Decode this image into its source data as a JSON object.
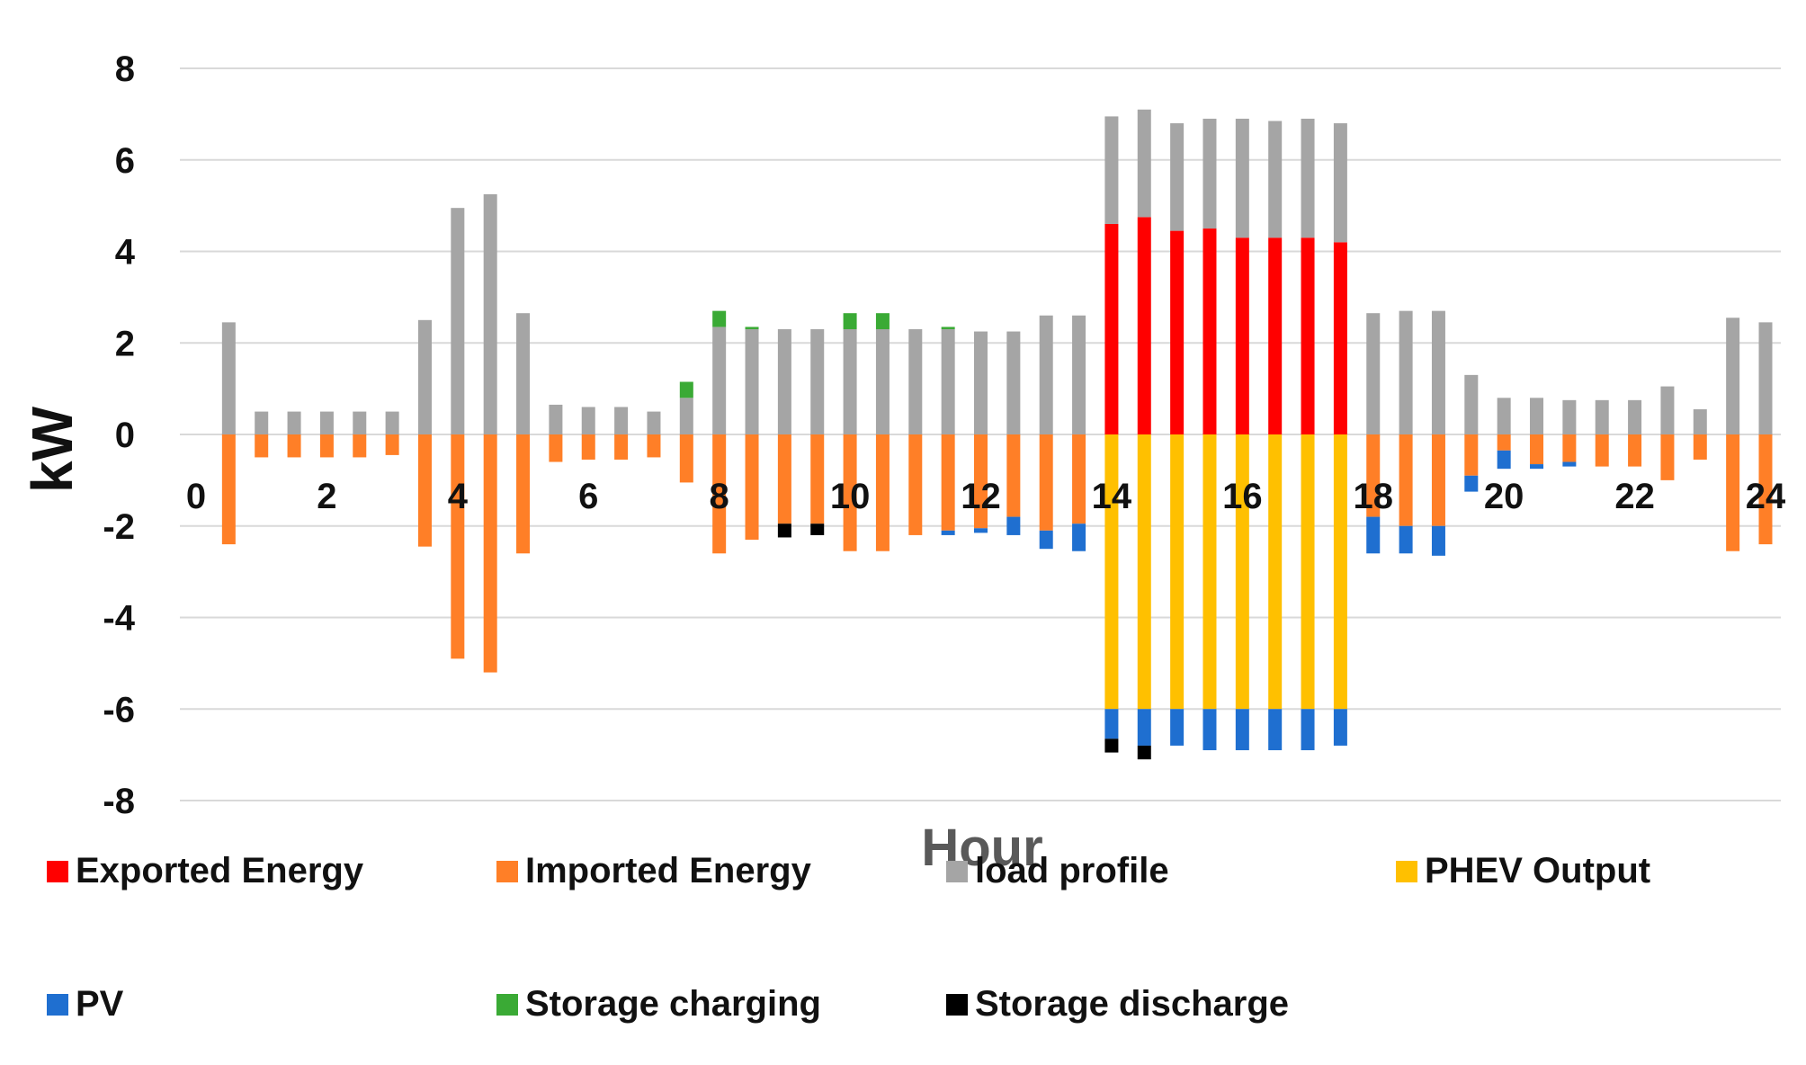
{
  "chart_data": {
    "type": "bar",
    "stacked": true,
    "title": "",
    "xlabel": "Hour",
    "ylabel": "kW",
    "ylim": [
      -8,
      8
    ],
    "xlim": [
      0,
      24
    ],
    "y_ticks": [
      "8",
      "6",
      "4",
      "2",
      "0",
      "-2",
      "-4",
      "-6",
      "-8"
    ],
    "x_ticks": [
      "0",
      "2",
      "4",
      "6",
      "8",
      "10",
      "12",
      "14",
      "16",
      "18",
      "20",
      "22",
      "24"
    ],
    "x": [
      0.5,
      1,
      1.5,
      2,
      2.5,
      3,
      3.5,
      4,
      4.5,
      5,
      5.5,
      6,
      6.5,
      7,
      7.5,
      8,
      8.5,
      9,
      9.5,
      10,
      10.5,
      11,
      11.5,
      12,
      12.5,
      13,
      13.5,
      14,
      14.5,
      15,
      15.5,
      16,
      16.5,
      17,
      17.5,
      18,
      18.5,
      19,
      19.5,
      20,
      20.5,
      21,
      21.5,
      22,
      22.5,
      23,
      23.5,
      24
    ],
    "series": [
      {
        "name": "Exported Energy",
        "color": "#ff0000",
        "values": [
          0,
          0,
          0,
          0,
          0,
          0,
          0,
          0,
          0,
          0,
          0,
          0,
          0,
          0,
          0,
          0,
          0,
          0,
          0,
          0,
          0,
          0,
          0,
          0,
          0,
          0,
          0,
          4.6,
          4.75,
          4.45,
          4.5,
          4.3,
          4.3,
          4.3,
          4.2,
          0,
          0,
          0,
          0,
          0,
          0,
          0,
          0,
          0,
          0,
          0,
          0,
          0
        ]
      },
      {
        "name": "Imported Energy",
        "color": "#ff7f27",
        "values": [
          -2.4,
          -0.5,
          -0.5,
          -0.5,
          -0.5,
          -0.45,
          -2.45,
          -4.9,
          -5.2,
          -2.6,
          -0.6,
          -0.55,
          -0.55,
          -0.5,
          -1.05,
          -2.6,
          -2.3,
          -1.95,
          -1.95,
          -2.55,
          -2.55,
          -2.2,
          -2.1,
          -2.05,
          -1.8,
          -2.1,
          -1.95,
          0,
          0,
          0,
          0,
          0,
          0,
          0,
          0,
          -1.8,
          -2.0,
          -2.0,
          -0.9,
          -0.35,
          -0.65,
          -0.6,
          -0.7,
          -0.7,
          -1.0,
          -0.55,
          -2.55,
          -2.4
        ]
      },
      {
        "name": "load profile",
        "color": "#a5a5a5",
        "values": [
          2.45,
          0.5,
          0.5,
          0.5,
          0.5,
          0.5,
          2.5,
          4.95,
          5.25,
          2.65,
          0.65,
          0.6,
          0.6,
          0.5,
          0.8,
          2.35,
          2.3,
          2.3,
          2.3,
          2.3,
          2.3,
          2.3,
          2.3,
          2.25,
          2.25,
          2.6,
          2.6,
          2.35,
          2.35,
          2.35,
          2.4,
          2.6,
          2.55,
          2.6,
          2.6,
          2.65,
          2.7,
          2.7,
          1.3,
          0.8,
          0.8,
          0.75,
          0.75,
          0.75,
          1.05,
          0.55,
          2.55,
          2.45
        ]
      },
      {
        "name": "PHEV Output",
        "color": "#ffc000",
        "values": [
          0,
          0,
          0,
          0,
          0,
          0,
          0,
          0,
          0,
          0,
          0,
          0,
          0,
          0,
          0,
          0,
          0,
          0,
          0,
          0,
          0,
          0,
          0,
          0,
          0,
          0,
          0,
          -6,
          -6,
          -6,
          -6,
          -6,
          -6,
          -6,
          -6,
          0,
          0,
          0,
          0,
          0,
          0,
          0,
          0,
          0,
          0,
          0,
          0,
          0
        ]
      },
      {
        "name": "PV",
        "color": "#1f6fd0",
        "values": [
          0,
          0,
          0,
          0,
          0,
          0,
          0,
          0,
          0,
          0,
          0,
          0,
          0,
          0,
          0,
          0,
          0,
          0,
          0,
          0,
          0,
          0,
          -0.1,
          -0.1,
          -0.4,
          -0.4,
          -0.6,
          -0.65,
          -0.8,
          -0.8,
          -0.9,
          -0.9,
          -0.9,
          -0.9,
          -0.8,
          -0.8,
          -0.6,
          -0.65,
          -0.35,
          -0.4,
          -0.1,
          -0.1,
          0,
          0,
          0,
          0,
          0,
          0
        ]
      },
      {
        "name": "Storage charging",
        "color": "#3aaa35",
        "values": [
          0,
          0,
          0,
          0,
          0,
          0,
          0,
          0,
          0,
          0,
          0,
          0,
          0,
          0,
          0.35,
          0.35,
          0.05,
          0,
          0,
          0.35,
          0.35,
          0,
          0.05,
          0,
          0,
          0,
          0,
          0,
          0,
          0,
          0,
          0,
          0,
          0,
          0,
          0,
          0,
          0,
          0,
          0,
          0,
          0,
          0,
          0,
          0,
          0,
          0,
          0
        ]
      },
      {
        "name": "Storage discharge",
        "color": "#000000",
        "values": [
          0,
          0,
          0,
          0,
          0,
          0,
          0,
          0,
          0,
          0,
          0,
          0,
          0,
          0,
          0,
          0,
          0,
          -0.3,
          -0.25,
          0,
          0,
          0,
          0,
          0,
          0,
          0,
          0,
          -0.3,
          -0.3,
          0,
          0,
          0,
          0,
          0,
          0,
          0,
          0,
          0,
          0,
          0,
          0,
          0,
          0,
          0,
          0,
          0,
          0,
          0
        ]
      }
    ],
    "legend": {
      "placement": "bottom",
      "entries": [
        "Exported Energy",
        "Imported Energy",
        "load profile",
        "PHEV Output",
        "PV",
        "Storage charging",
        "Storage discharge"
      ]
    },
    "grid": true
  }
}
